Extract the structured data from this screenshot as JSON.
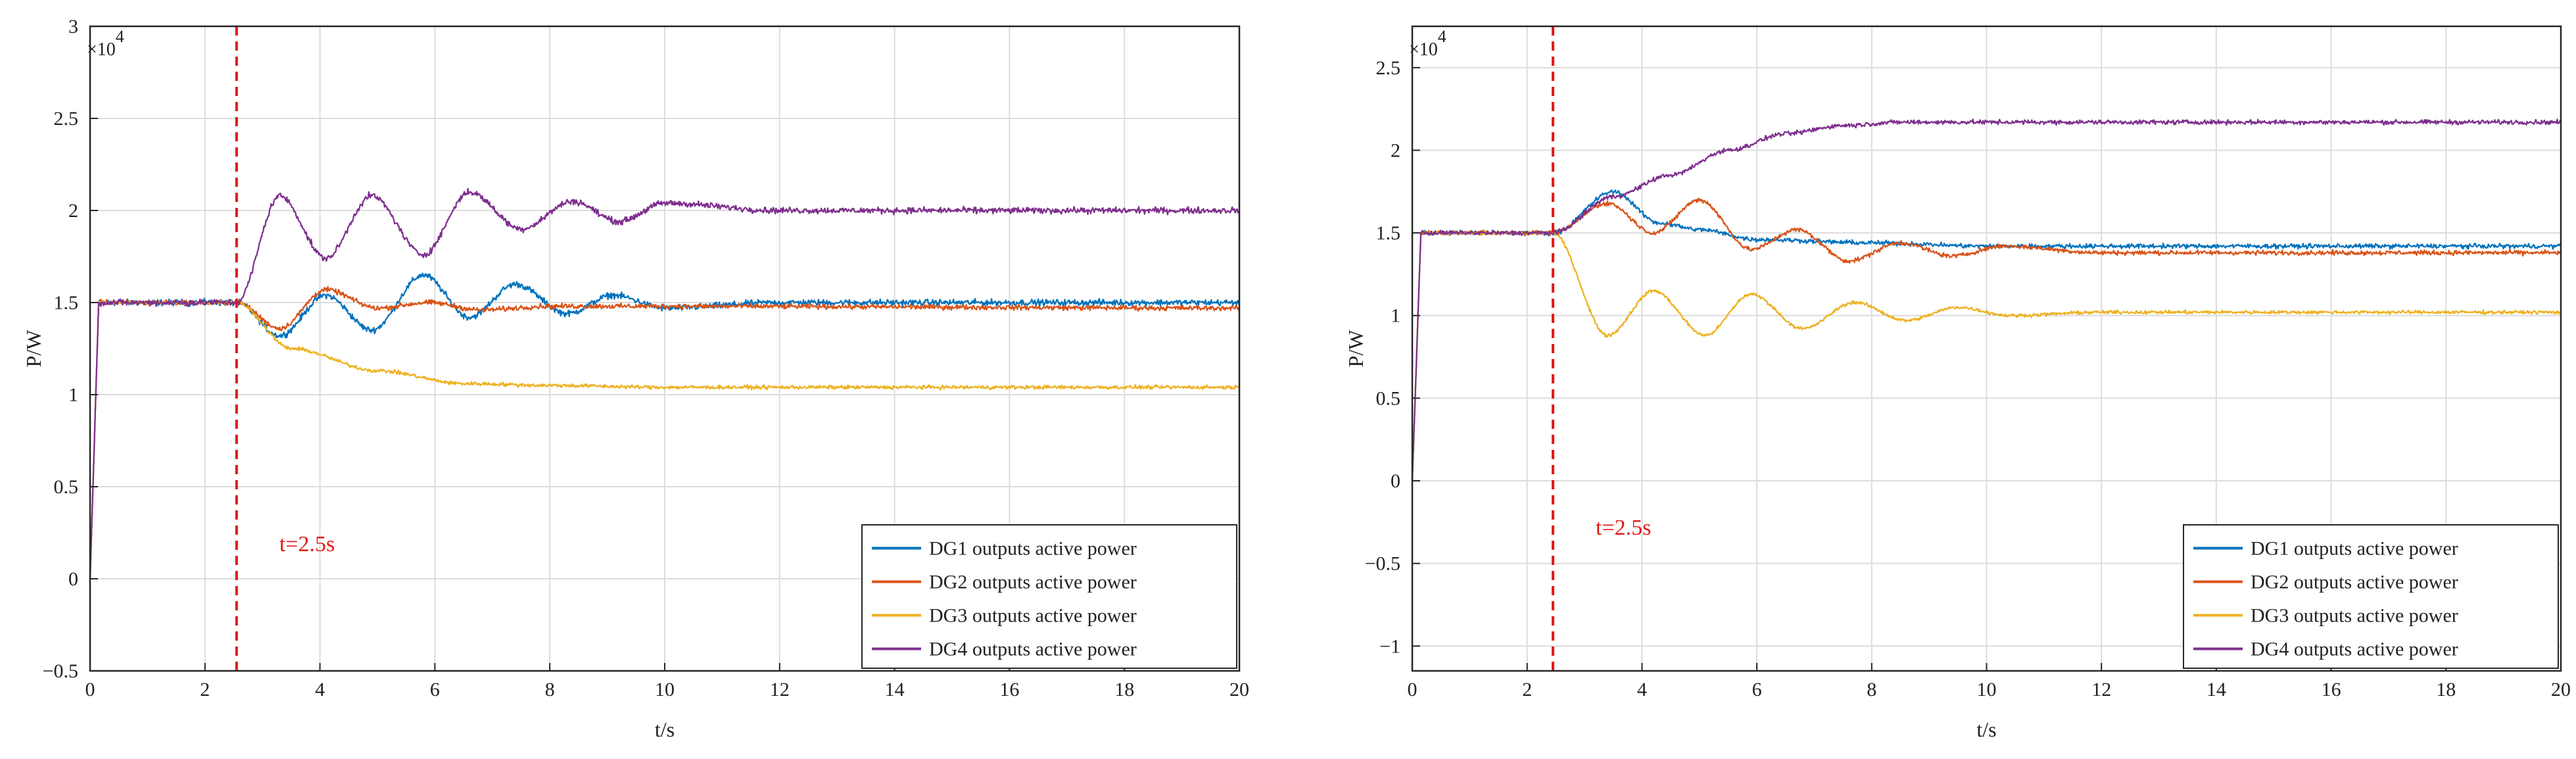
{
  "colors": {
    "dg1": "#0072BD",
    "dg2": "#D95319",
    "dg3": "#EDB120",
    "dg4": "#7E2F8E",
    "event_line": "#E21A1A"
  },
  "chart_data": [
    {
      "type": "line",
      "xlabel": "t/s",
      "ylabel": "P/W",
      "y_exponent_base": "×10",
      "y_exponent_power": "4",
      "xlim": [
        0,
        20
      ],
      "ylim": [
        -0.5,
        3.0
      ],
      "xticks": [
        0,
        2,
        4,
        6,
        8,
        10,
        12,
        14,
        16,
        18,
        20
      ],
      "yticks": [
        -0.5,
        0,
        0.5,
        1,
        1.5,
        2,
        2.5,
        3
      ],
      "ytick_labels": [
        "−0.5",
        "0",
        "0.5",
        "1",
        "1.5",
        "2",
        "2.5",
        "3"
      ],
      "grid": true,
      "legend_position": "bottom-right",
      "event": {
        "x": 2.55,
        "label": "t=2.5s"
      },
      "series": [
        {
          "name": "DG1 outputs active power",
          "color_key": "dg1",
          "start": 1.5,
          "final": 1.5,
          "osc_amp": 0.2,
          "osc_period": 1.8,
          "osc_decay": 2.2,
          "osc_sign": -1,
          "noise": 0.025,
          "points": [
            [
              2.55,
              1.5
            ],
            [
              3.3,
              1.32
            ],
            [
              4.1,
              1.54
            ],
            [
              4.9,
              1.35
            ],
            [
              5.8,
              1.65
            ],
            [
              6.6,
              1.42
            ],
            [
              7.4,
              1.6
            ],
            [
              8.3,
              1.44
            ],
            [
              9.1,
              1.54
            ],
            [
              10,
              1.47
            ],
            [
              12,
              1.5
            ],
            [
              20,
              1.5
            ]
          ]
        },
        {
          "name": "DG2 outputs active power",
          "color_key": "dg2",
          "start": 1.5,
          "final": 1.47,
          "osc_amp": 0.1,
          "osc_period": 1.8,
          "osc_decay": 2.0,
          "osc_sign": -1,
          "noise": 0.02,
          "points": [
            [
              2.55,
              1.5
            ],
            [
              3.3,
              1.36
            ],
            [
              4.1,
              1.57
            ],
            [
              5,
              1.47
            ],
            [
              5.9,
              1.5
            ],
            [
              6.8,
              1.46
            ],
            [
              8,
              1.48
            ],
            [
              10,
              1.48
            ],
            [
              20,
              1.47
            ]
          ]
        },
        {
          "name": "DG3 outputs active power",
          "color_key": "dg3",
          "start": 1.5,
          "final": 1.04,
          "osc_amp": 0.0,
          "osc_period": 1.8,
          "osc_decay": 2.0,
          "osc_sign": -1,
          "noise": 0.015,
          "points": [
            [
              2.55,
              1.5
            ],
            [
              3.5,
              1.25
            ],
            [
              5,
              1.13
            ],
            [
              6.5,
              1.06
            ],
            [
              8,
              1.05
            ],
            [
              10,
              1.04
            ],
            [
              20,
              1.04
            ]
          ]
        },
        {
          "name": "DG4 outputs active power",
          "color_key": "dg4",
          "start": 1.5,
          "final": 2.0,
          "osc_amp": 0.32,
          "osc_period": 1.7,
          "osc_decay": 3.2,
          "osc_sign": -1,
          "noise": 0.025,
          "points": [
            [
              2.55,
              1.5
            ],
            [
              3.3,
              2.08
            ],
            [
              4.1,
              1.74
            ],
            [
              4.9,
              2.08
            ],
            [
              5.8,
              1.76
            ],
            [
              6.6,
              2.1
            ],
            [
              7.5,
              1.9
            ],
            [
              8.4,
              2.05
            ],
            [
              9.2,
              1.94
            ],
            [
              10,
              2.04
            ],
            [
              12,
              2.0
            ],
            [
              20,
              2.0
            ]
          ]
        }
      ]
    },
    {
      "type": "line",
      "xlabel": "t/s",
      "ylabel": "P/W",
      "y_exponent_base": "×10",
      "y_exponent_power": "4",
      "xlim": [
        0,
        20
      ],
      "ylim": [
        -1.15,
        2.75
      ],
      "xticks": [
        0,
        2,
        4,
        6,
        8,
        10,
        12,
        14,
        16,
        18,
        20
      ],
      "yticks": [
        -1,
        -0.5,
        0,
        0.5,
        1,
        1.5,
        2,
        2.5
      ],
      "ytick_labels": [
        "−1",
        "−0.5",
        "0",
        "0.5",
        "1",
        "1.5",
        "2",
        "2.5"
      ],
      "grid": true,
      "legend_position": "bottom-right",
      "event": {
        "x": 2.45,
        "label": "t=2.5s"
      },
      "series": [
        {
          "name": "DG1 outputs active power",
          "color_key": "dg1",
          "start": 1.5,
          "final": 1.42,
          "osc_amp": 0.0,
          "osc_period": 1.6,
          "osc_decay": 2.0,
          "osc_sign": 1,
          "noise": 0.02,
          "points": [
            [
              2.45,
              1.5
            ],
            [
              3.5,
              1.75
            ],
            [
              4.3,
              1.56
            ],
            [
              5,
              1.52
            ],
            [
              6,
              1.46
            ],
            [
              8,
              1.44
            ],
            [
              10,
              1.42
            ],
            [
              20,
              1.42
            ]
          ]
        },
        {
          "name": "DG2 outputs active power",
          "color_key": "dg2",
          "start": 1.5,
          "final": 1.38,
          "osc_amp": 0.0,
          "osc_period": 1.6,
          "osc_decay": 2.0,
          "osc_sign": 1,
          "noise": 0.02,
          "points": [
            [
              2.45,
              1.5
            ],
            [
              3.4,
              1.68
            ],
            [
              4.2,
              1.5
            ],
            [
              5,
              1.7
            ],
            [
              5.9,
              1.4
            ],
            [
              6.7,
              1.52
            ],
            [
              7.6,
              1.33
            ],
            [
              8.5,
              1.44
            ],
            [
              9.4,
              1.36
            ],
            [
              10.3,
              1.42
            ],
            [
              12,
              1.38
            ],
            [
              20,
              1.38
            ]
          ]
        },
        {
          "name": "DG3 outputs active power",
          "color_key": "dg3",
          "start": 1.5,
          "final": 1.02,
          "osc_amp": 0.0,
          "osc_period": 1.6,
          "osc_decay": 2.0,
          "osc_sign": -1,
          "noise": 0.015,
          "points": [
            [
              2.45,
              1.5
            ],
            [
              3.4,
              0.88
            ],
            [
              4.2,
              1.15
            ],
            [
              5.1,
              0.88
            ],
            [
              5.9,
              1.13
            ],
            [
              6.8,
              0.92
            ],
            [
              7.7,
              1.08
            ],
            [
              8.6,
              0.97
            ],
            [
              9.5,
              1.05
            ],
            [
              10.4,
              1.0
            ],
            [
              12,
              1.02
            ],
            [
              20,
              1.02
            ]
          ]
        },
        {
          "name": "DG4 outputs active power",
          "color_key": "dg4",
          "start": 1.5,
          "final": 2.17,
          "osc_amp": 0.0,
          "osc_period": 1.6,
          "osc_decay": 2.0,
          "osc_sign": 1,
          "noise": 0.02,
          "points": [
            [
              2.45,
              1.5
            ],
            [
              3.5,
              1.72
            ],
            [
              4.5,
              1.85
            ],
            [
              5.5,
              2.0
            ],
            [
              6.5,
              2.1
            ],
            [
              7.5,
              2.15
            ],
            [
              8.5,
              2.17
            ],
            [
              20,
              2.17
            ]
          ]
        }
      ]
    }
  ]
}
